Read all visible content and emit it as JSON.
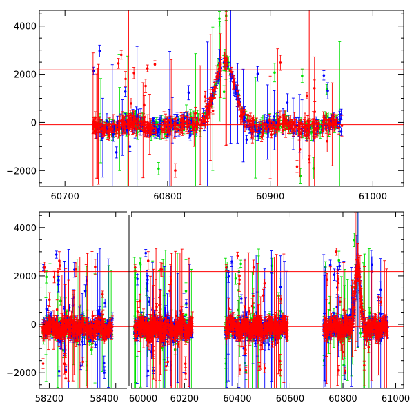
{
  "chart_data": [
    {
      "type": "scatter",
      "panel": "top",
      "xlim": [
        60675,
        61030
      ],
      "ylim": [
        -2650,
        4650
      ],
      "x_ticks": [
        60700,
        60800,
        60900,
        61000
      ],
      "y_ticks": [
        -2000,
        0,
        2000,
        4000
      ],
      "x_tick_labels": [
        "60700",
        "60800",
        "60900",
        "61000"
      ],
      "y_tick_labels": [
        "−2000",
        "0",
        "2000",
        "4000"
      ],
      "hlines": [
        2180,
        -90
      ],
      "vlines": [
        60762,
        60938
      ],
      "data_range": [
        60727,
        60970
      ],
      "peak": {
        "x": 60855,
        "y": 2600
      },
      "series": [
        {
          "color": "#0000ff",
          "x_range": [
            60727,
            60970
          ]
        },
        {
          "color": "#00e000",
          "x_range": [
            60727,
            60970
          ]
        },
        {
          "color": "#ff0000",
          "x_range": [
            60727,
            60970
          ]
        }
      ],
      "grid": false
    },
    {
      "type": "scatter",
      "panel": "bottom",
      "xlim": [
        58170,
        61030
      ],
      "ylim": [
        -2650,
        4650
      ],
      "x_ticks": [
        58200,
        58400,
        60000,
        60200,
        60400,
        60600,
        60800,
        61000
      ],
      "y_ticks": [
        -2000,
        0,
        2000,
        4000
      ],
      "x_tick_labels": [
        "58200",
        "58400",
        "60000",
        "60200",
        "60400",
        "60600",
        "60800",
        "61000"
      ],
      "y_tick_labels": [
        "−2000",
        "0",
        "2000",
        "4000"
      ],
      "hlines": [
        2180,
        -90
      ],
      "axis_break": 58440,
      "segments": [
        {
          "x_range": [
            58180,
            58390
          ],
          "xlim": [
            58170,
            58440
          ]
        },
        {
          "x_range": [
            60010,
            60230
          ]
        },
        {
          "x_range": [
            60355,
            60590
          ]
        },
        {
          "x_range": [
            60727,
            60970
          ],
          "peak": {
            "x": 60855,
            "y": 2600
          }
        }
      ],
      "series": [
        {
          "color": "#0000ff"
        },
        {
          "color": "#00e000"
        },
        {
          "color": "#ff0000"
        }
      ],
      "grid": false
    }
  ]
}
